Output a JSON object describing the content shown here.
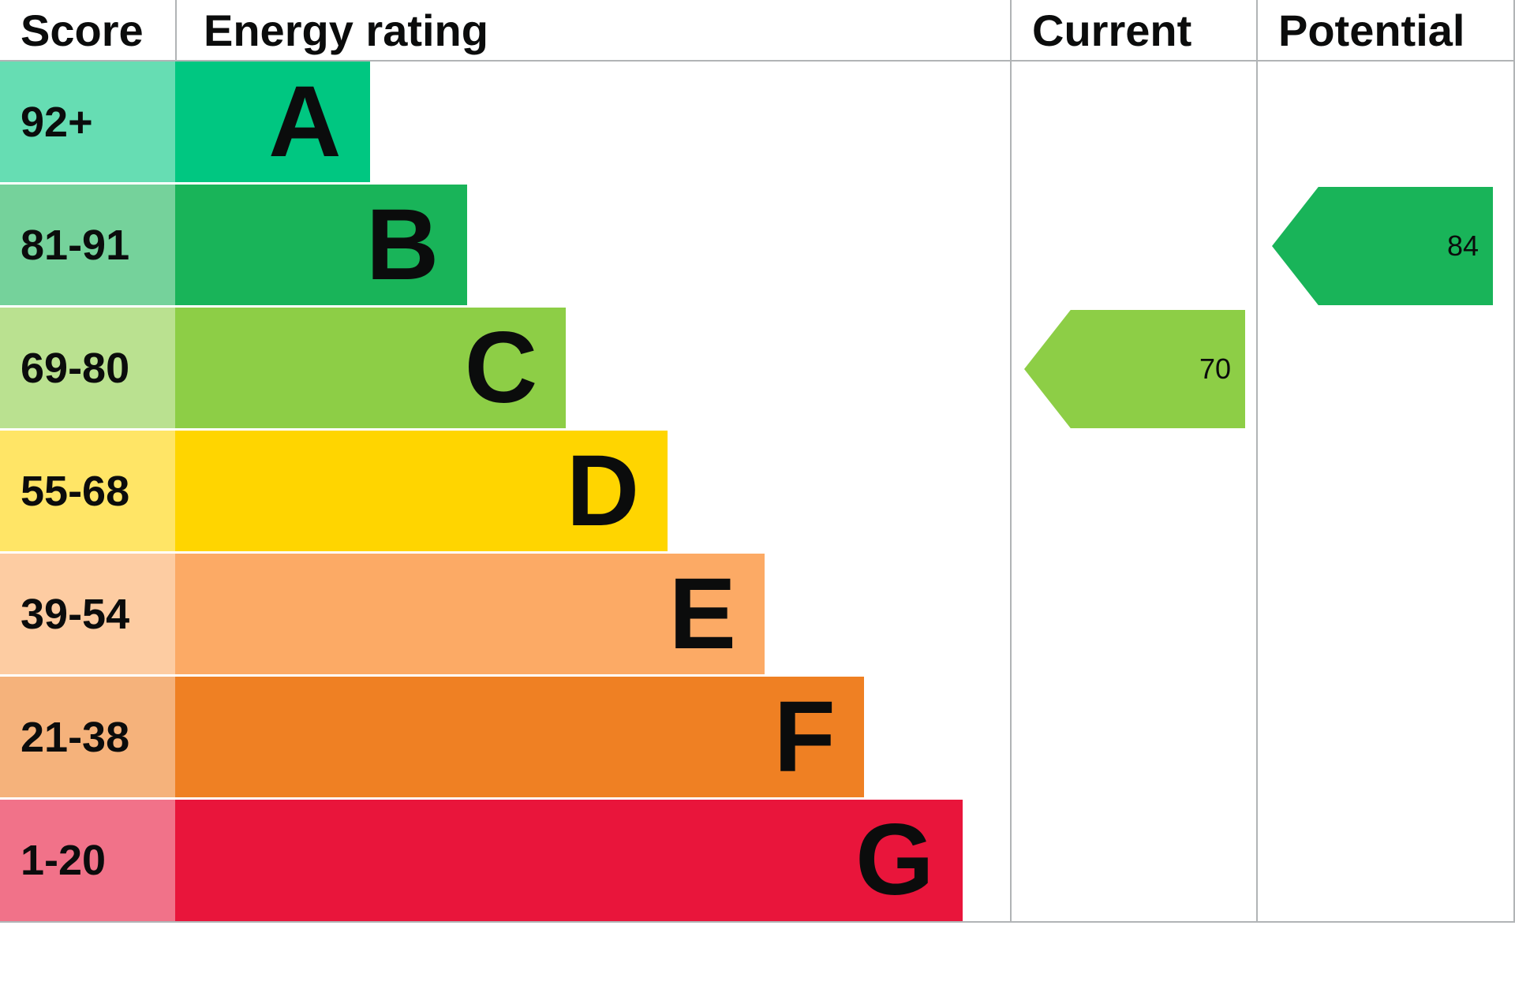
{
  "header": {
    "score": "Score",
    "energy_rating": "Energy rating",
    "current": "Current",
    "potential": "Potential"
  },
  "chart_data": {
    "type": "bar",
    "subtype": "epc-energy-rating-chart",
    "title": "Energy rating",
    "column_headers": [
      "Score",
      "Energy rating",
      "Current",
      "Potential"
    ],
    "bands": [
      {
        "score": "92+",
        "letter": "A",
        "color": "#00c781",
        "tint": "#66ddb3",
        "width_pct": 23.3
      },
      {
        "score": "81-91",
        "letter": "B",
        "color": "#19b459",
        "tint": "#75d29b",
        "width_pct": 35.0
      },
      {
        "score": "69-80",
        "letter": "C",
        "color": "#8dce46",
        "tint": "#bae190",
        "width_pct": 46.8
      },
      {
        "score": "55-68",
        "letter": "D",
        "color": "#ffd500",
        "tint": "#ffe566",
        "width_pct": 59.0
      },
      {
        "score": "39-54",
        "letter": "E",
        "color": "#fcaa65",
        "tint": "#fdcca2",
        "width_pct": 70.6
      },
      {
        "score": "21-38",
        "letter": "F",
        "color": "#ef8023",
        "tint": "#f5b27b",
        "width_pct": 82.5
      },
      {
        "score": "1-20",
        "letter": "G",
        "color": "#e9153b",
        "tint": "#f17289",
        "width_pct": 94.3
      }
    ],
    "current": {
      "value": 70,
      "band": "C",
      "band_index": 2,
      "color": "#8dce46"
    },
    "potential": {
      "value": 84,
      "band": "B",
      "band_index": 1,
      "color": "#19b459"
    },
    "border_color": "#b1b4b6",
    "text_color": "#0b0c0c",
    "grid": false,
    "legend_position": "none"
  }
}
